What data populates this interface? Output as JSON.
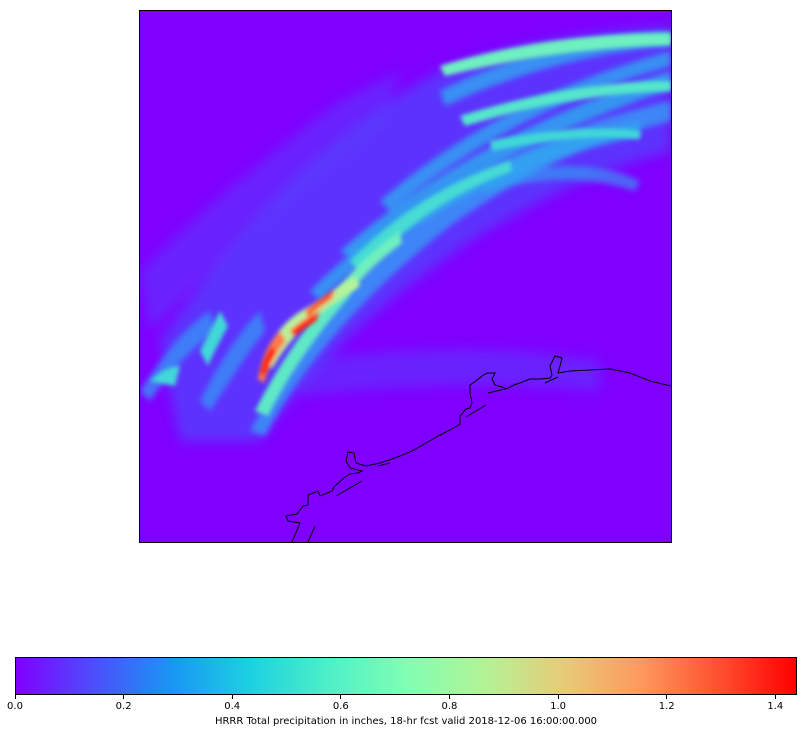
{
  "map": {
    "colormap": "rainbow",
    "background_color": "#7f00ff",
    "coastline_color": "#000000",
    "features": [
      "coastline"
    ]
  },
  "colorbar": {
    "label": "HRRR Total precipitation in inches, 18-hr fcst valid 2018-12-06 16:00:00.000",
    "vmin": 0.0,
    "vmax": 1.44,
    "ticks": [
      "0.0",
      "0.2",
      "0.4",
      "0.6",
      "0.8",
      "1.0",
      "1.2",
      "1.4"
    ],
    "tick_values": [
      0.0,
      0.2,
      0.4,
      0.6,
      0.8,
      1.0,
      1.2,
      1.4
    ],
    "gradient_colors": [
      "#8000ff",
      "#4c4efc",
      "#1996f3",
      "#1cd1e0",
      "#4df0c8",
      "#80feb3",
      "#b3f396",
      "#e6cc78",
      "#ff9a5e",
      "#ff5030",
      "#ff0000"
    ]
  }
}
